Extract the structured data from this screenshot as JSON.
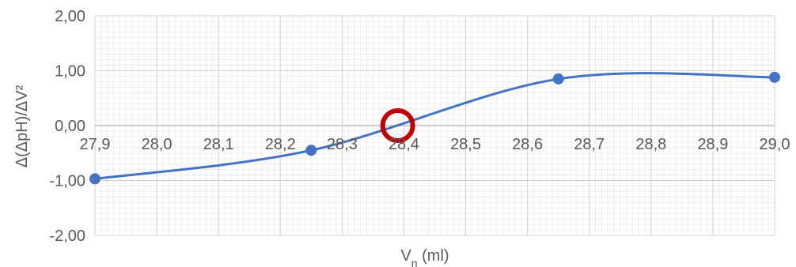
{
  "chart_data": {
    "type": "line",
    "title": "",
    "xlabel": "V",
    "xlabel_sub": "n",
    "xlabel_unit": " (ml)",
    "ylabel": "Δ(ΔpH)/ΔV²",
    "xlim": [
      27.9,
      29.0
    ],
    "ylim": [
      -2.0,
      2.0
    ],
    "x_ticks": [
      27.9,
      28.0,
      28.1,
      28.2,
      28.3,
      28.4,
      28.5,
      28.6,
      28.7,
      28.8,
      28.9,
      29.0
    ],
    "x_tick_labels": [
      "27,9",
      "28,0",
      "28,1",
      "28,2",
      "28,3",
      "28,4",
      "28,5",
      "28,6",
      "28,7",
      "28,8",
      "28,9",
      "29,0"
    ],
    "y_ticks": [
      -2.0,
      -1.0,
      0.0,
      1.0,
      2.0
    ],
    "y_tick_labels": [
      "-2,00",
      "-1,00",
      "0,00",
      "1,00",
      "2,00"
    ],
    "grid": true,
    "minor_grid": true,
    "smooth": true,
    "series": [
      {
        "x": [
          27.9,
          28.25,
          28.65,
          29.0
        ],
        "y": [
          -0.97,
          -0.45,
          0.85,
          0.88
        ],
        "color": "#4472C4"
      }
    ],
    "annotations": [
      {
        "type": "circle-marker",
        "x": 28.39,
        "y": 0.0,
        "color": "#C00000"
      }
    ]
  }
}
